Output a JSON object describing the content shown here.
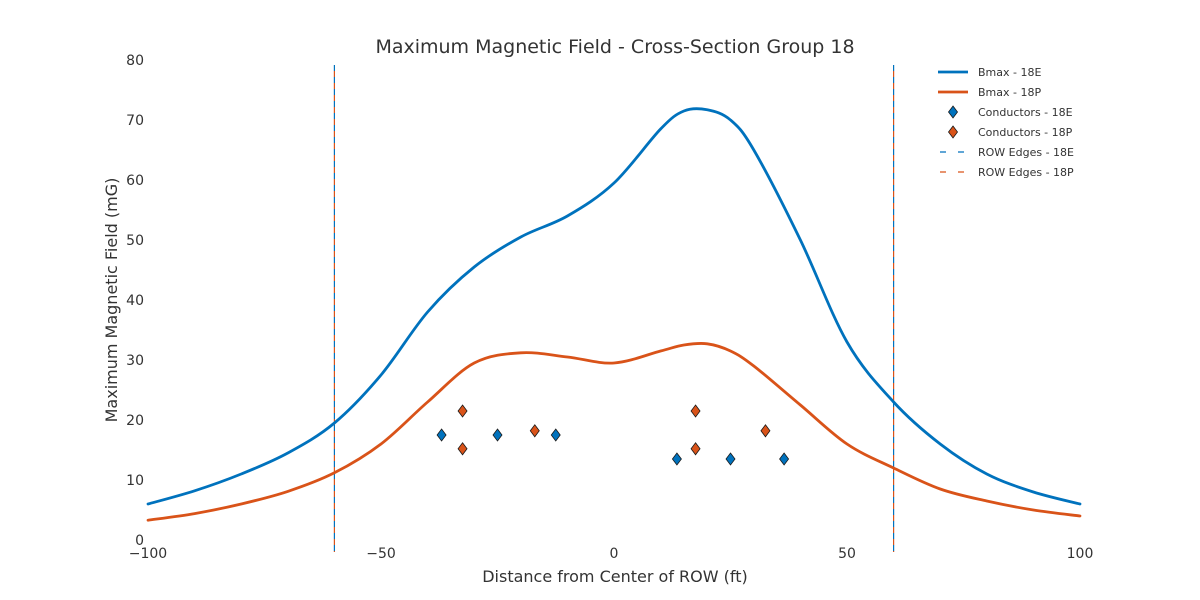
{
  "chart_data": {
    "type": "line",
    "title": "Maximum Magnetic Field - Cross-Section Group 18",
    "xlabel": "Distance from Center of ROW (ft)",
    "ylabel": "Maximum Magnetic Field (mG)",
    "xlim": [
      -100,
      100
    ],
    "ylim": [
      0,
      80
    ],
    "xticks": [
      -100,
      -50,
      0,
      50,
      100
    ],
    "xtick_labels": [
      "−100",
      "−50",
      "0",
      "50",
      "100"
    ],
    "yticks": [
      0,
      10,
      20,
      30,
      40,
      50,
      60,
      70,
      80
    ],
    "grid": false,
    "legend_position": "top-right",
    "series": [
      {
        "name": "Bmax - 18E",
        "kind": "line",
        "color": "#0072BD",
        "x": [
          -100,
          -90,
          -80,
          -70,
          -60,
          -50,
          -40,
          -30,
          -20,
          -10,
          0,
          10,
          15,
          20,
          25,
          30,
          40,
          50,
          60,
          70,
          80,
          90,
          100
        ],
        "y": [
          6,
          8.2,
          11,
          14.5,
          19.5,
          27.5,
          38,
          45.5,
          50.5,
          54,
          59.5,
          68.5,
          71.5,
          71.7,
          70,
          65,
          50,
          33,
          23,
          16,
          11,
          8,
          6
        ]
      },
      {
        "name": "Bmax - 18P",
        "kind": "line",
        "color": "#D95319",
        "x": [
          -100,
          -90,
          -80,
          -70,
          -60,
          -50,
          -40,
          -30,
          -20,
          -10,
          0,
          10,
          15,
          20,
          25,
          30,
          40,
          50,
          60,
          70,
          80,
          90,
          100
        ],
        "y": [
          3.3,
          4.4,
          6,
          8.1,
          11.2,
          16,
          23,
          29.5,
          31.2,
          30.5,
          29.5,
          31.5,
          32.5,
          32.7,
          31.5,
          29,
          22.5,
          16,
          12,
          8.5,
          6.5,
          5,
          4
        ]
      },
      {
        "name": "Conductors - 18E",
        "kind": "marker",
        "marker": "diamond",
        "color": "#0072BD",
        "x": [
          -37,
          -25,
          -12.5,
          13.5,
          25,
          36.5
        ],
        "y": [
          17.5,
          17.5,
          17.5,
          13.5,
          13.5,
          13.5
        ]
      },
      {
        "name": "Conductors - 18P",
        "kind": "marker",
        "marker": "diamond",
        "color": "#D95319",
        "x": [
          -32.5,
          -32.5,
          -17,
          17.5,
          17.5,
          32.5
        ],
        "y": [
          21.5,
          15.2,
          18.2,
          21.5,
          15.2,
          18.2
        ]
      },
      {
        "name": "ROW Edges - 18E",
        "kind": "vline",
        "color": "#0072BD",
        "x": [
          -60,
          60
        ]
      },
      {
        "name": "ROW Edges - 18P",
        "kind": "vline",
        "color": "#D95319",
        "x": [
          -60,
          60
        ]
      }
    ]
  }
}
